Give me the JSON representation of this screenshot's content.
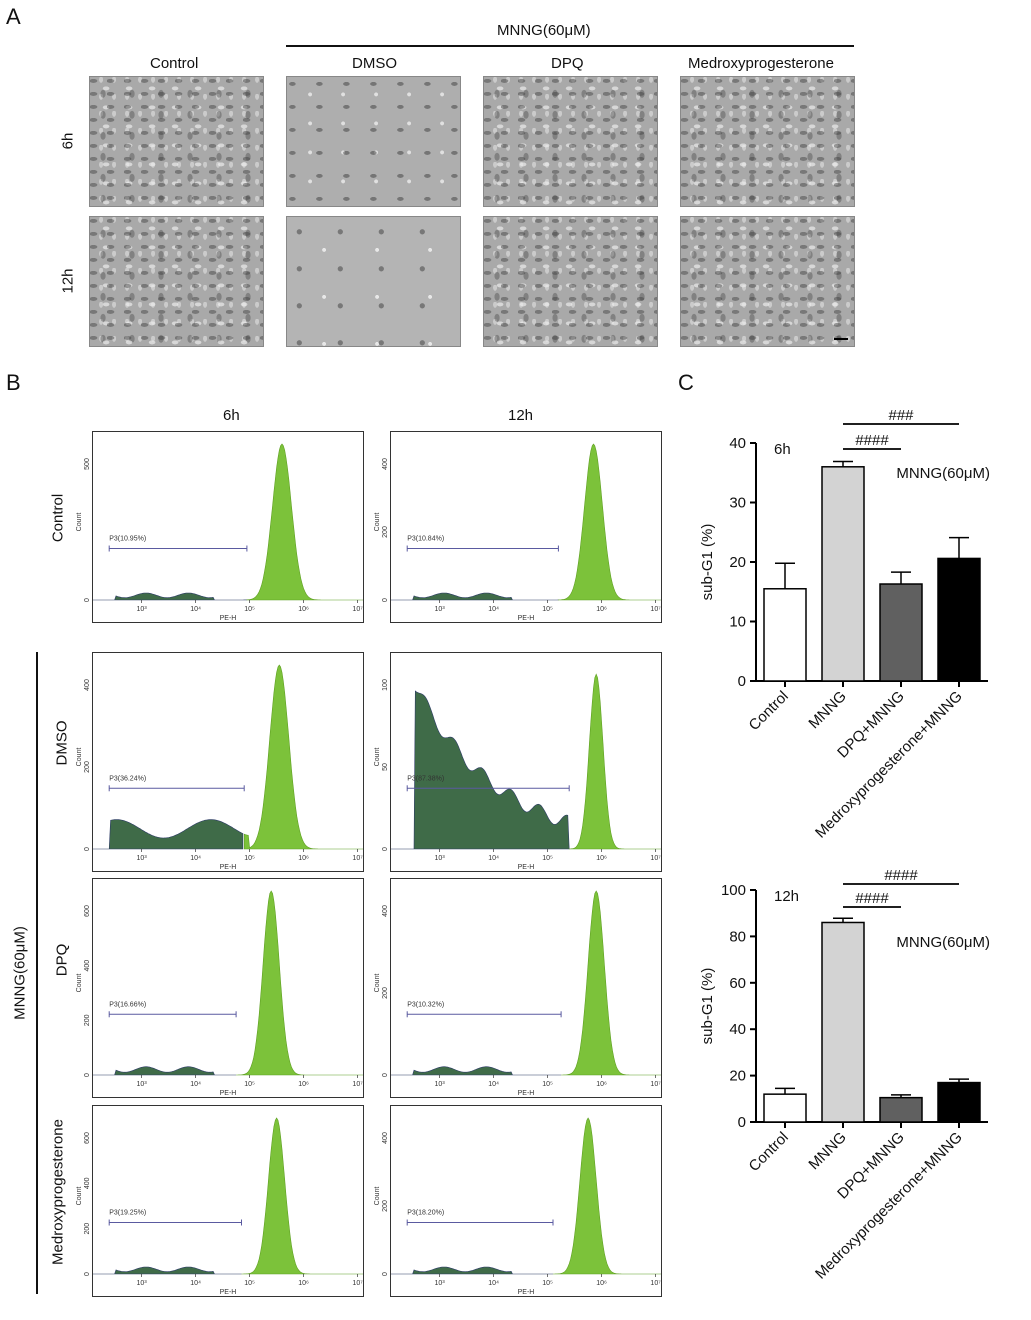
{
  "panel_a": {
    "letter": "A",
    "treatment_header": "MNNG(60μM)",
    "columns": [
      "Control",
      "DMSO",
      "DPQ",
      "Medroxyprogesterone"
    ],
    "rows": [
      "6h",
      "12h"
    ]
  },
  "panel_b": {
    "letter": "B",
    "columns": [
      "6h",
      "12h"
    ],
    "rows": [
      "Control",
      "DMSO",
      "DPQ",
      "Medroxyprogesterone"
    ],
    "treatment_label": "MNNG(60μM)",
    "x_axis_label": "PE-H",
    "y_axis_label": "Count",
    "x_ticks": [
      "10³",
      "10⁴",
      "10⁵",
      "10⁶",
      "10⁷"
    ],
    "gates": [
      {
        "row": "Control",
        "time": "6h",
        "label": "P3(10.95%)",
        "yticks": [
          "0",
          "500"
        ]
      },
      {
        "row": "Control",
        "time": "12h",
        "label": "P3(10.84%)",
        "yticks": [
          "0",
          "200",
          "400"
        ]
      },
      {
        "row": "DMSO",
        "time": "6h",
        "label": "P3(36.24%)",
        "yticks": [
          "0",
          "200",
          "400"
        ]
      },
      {
        "row": "DMSO",
        "time": "12h",
        "label": "P3(87.38%)",
        "yticks": [
          "0",
          "50",
          "100"
        ]
      },
      {
        "row": "DPQ",
        "time": "6h",
        "label": "P3(16.66%)",
        "yticks": [
          "0",
          "200",
          "400",
          "600"
        ]
      },
      {
        "row": "DPQ",
        "time": "12h",
        "label": "P3(10.32%)",
        "yticks": [
          "0",
          "200",
          "400"
        ]
      },
      {
        "row": "Medroxyprogesterone",
        "time": "6h",
        "label": "P3(19.25%)",
        "yticks": [
          "0",
          "200",
          "400",
          "600"
        ]
      },
      {
        "row": "Medroxyprogesterone",
        "time": "12h",
        "label": "P3(18.20%)",
        "yticks": [
          "0",
          "200",
          "400"
        ]
      }
    ]
  },
  "panel_c": {
    "letter": "C"
  },
  "chart_data": [
    {
      "type": "bar",
      "time_label": "6h",
      "annotation": "MNNG(60μM)",
      "categories": [
        "Control",
        "MNNG",
        "DPQ+MNNG",
        "Medroxyprogesterone+MNNG"
      ],
      "values": [
        15.5,
        36,
        16.3,
        20.6
      ],
      "errors": [
        4.3,
        0.9,
        2.0,
        3.5
      ],
      "bar_colors": [
        "#ffffff",
        "#d3d3d3",
        "#606060",
        "#000000"
      ],
      "ylabel": "sub-G1 (%)",
      "ylim": [
        0,
        40
      ],
      "yticks": [
        0,
        10,
        20,
        30,
        40
      ],
      "significance": [
        {
          "label": "####",
          "from": "MNNG",
          "to": "DPQ+MNNG"
        },
        {
          "label": "###",
          "from": "MNNG",
          "to": "Medroxyprogesterone+MNNG"
        }
      ]
    },
    {
      "type": "bar",
      "time_label": "12h",
      "annotation": "MNNG(60μM)",
      "categories": [
        "Control",
        "MNNG",
        "DPQ+MNNG",
        "Medroxyprogesterone+MNNG"
      ],
      "values": [
        12,
        86,
        10.5,
        17
      ],
      "errors": [
        2.5,
        1.8,
        1.2,
        1.5
      ],
      "bar_colors": [
        "#ffffff",
        "#d3d3d3",
        "#606060",
        "#000000"
      ],
      "ylabel": "sub-G1 (%)",
      "ylim": [
        0,
        100
      ],
      "yticks": [
        0,
        20,
        40,
        60,
        80,
        100
      ],
      "significance": [
        {
          "label": "####",
          "from": "MNNG",
          "to": "DPQ+MNNG"
        },
        {
          "label": "####",
          "from": "MNNG",
          "to": "Medroxyprogesterone+MNNG"
        }
      ]
    }
  ]
}
